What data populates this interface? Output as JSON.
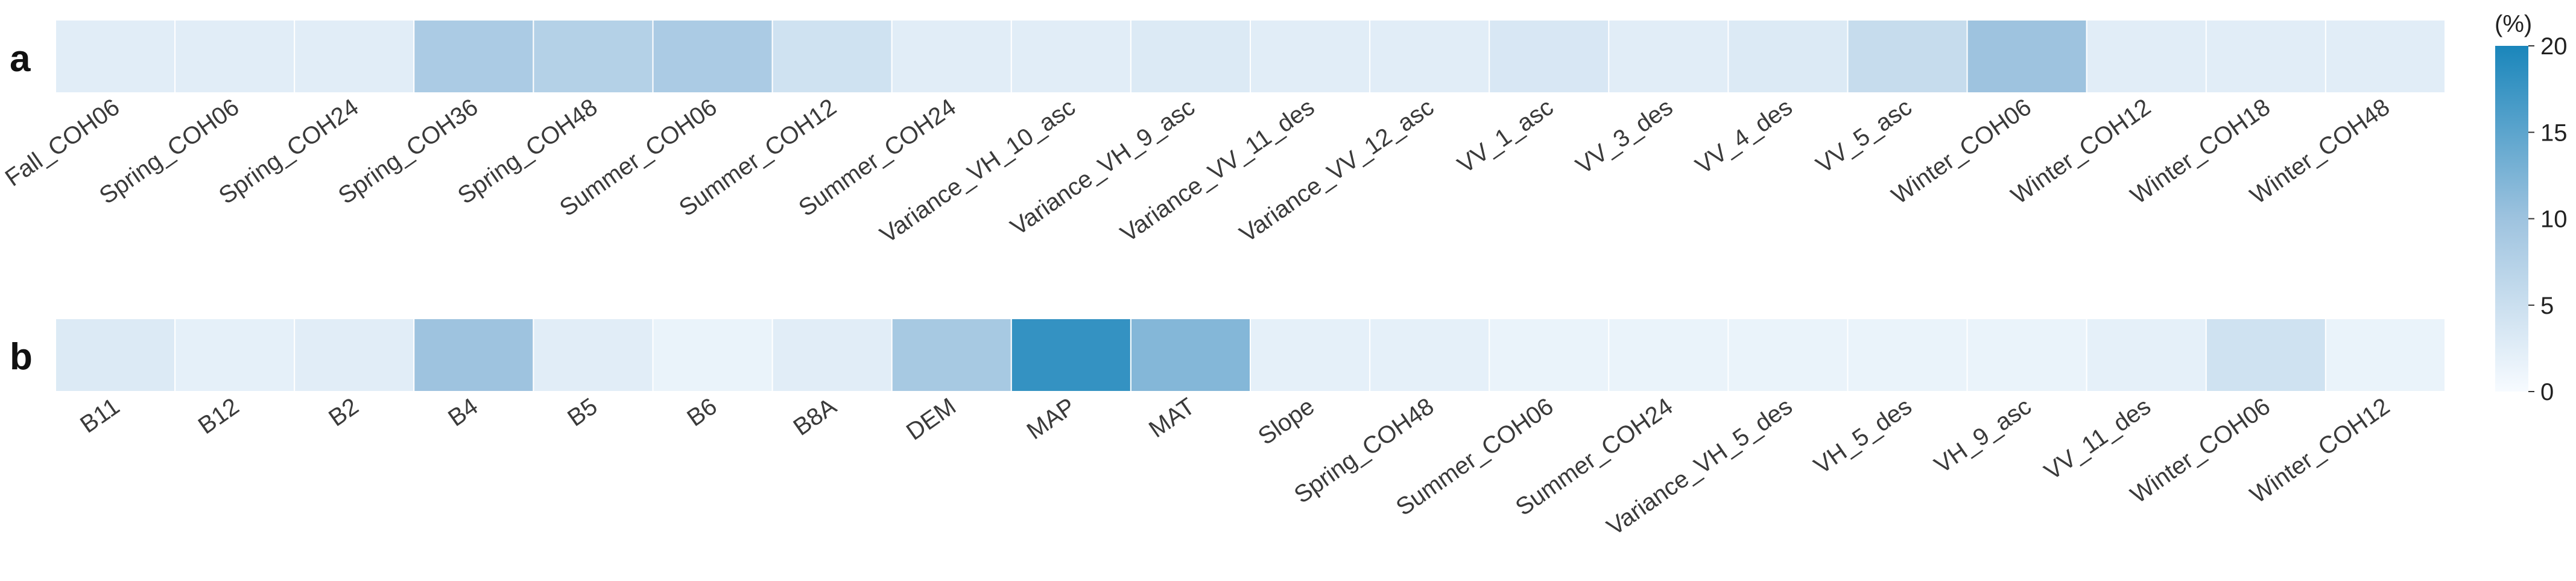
{
  "chart_data": [
    {
      "type": "heatmap",
      "panel_label": "a",
      "categories": [
        "Fall_COH06",
        "Spring_COH06",
        "Spring_COH24",
        "Spring_COH36",
        "Spring_COH48",
        "Summer_COH06",
        "Summer_COH12",
        "Summer_COH24",
        "Variance_VH_10_asc",
        "Variance_VH_9_asc",
        "Variance_VV_11_des",
        "Variance_VV_12_asc",
        "VV_1_asc",
        "VV_3_des",
        "VV_4_des",
        "VV_5_asc",
        "Winter_COH06",
        "Winter_COH12",
        "Winter_COH18",
        "Winter_COH48"
      ],
      "values": [
        2.5,
        2.5,
        2.5,
        8.5,
        7.5,
        8.5,
        4.5,
        2.5,
        2.5,
        3.0,
        2.5,
        2.5,
        3.5,
        2.5,
        3.0,
        5.5,
        10.0,
        2.5,
        2.5,
        2.5
      ]
    },
    {
      "type": "heatmap",
      "panel_label": "b",
      "categories": [
        "B11",
        "B12",
        "B2",
        "B4",
        "B5",
        "B6",
        "B8A",
        "DEM",
        "MAP",
        "MAT",
        "Slope",
        "Spring_COH48",
        "Summer_COH06",
        "Summer_COH24",
        "Variance_VH_5_des",
        "VH_5_des",
        "VH_9_asc",
        "VV_11_des",
        "Winter_COH06",
        "Winter_COH12"
      ],
      "values": [
        3.0,
        2.0,
        2.5,
        10.0,
        2.5,
        1.5,
        2.5,
        9.0,
        18.0,
        12.0,
        2.0,
        2.0,
        1.5,
        1.5,
        1.5,
        1.5,
        1.5,
        2.0,
        4.5,
        1.5
      ]
    }
  ],
  "colorbar": {
    "unit_label": "(%)",
    "ticks": [
      "0",
      "5",
      "10",
      "15",
      "20"
    ],
    "min": 0,
    "max": 20,
    "color_low": "#f7fbff",
    "color_mid": "#9ec3df",
    "color_high": "#1a86bb"
  }
}
